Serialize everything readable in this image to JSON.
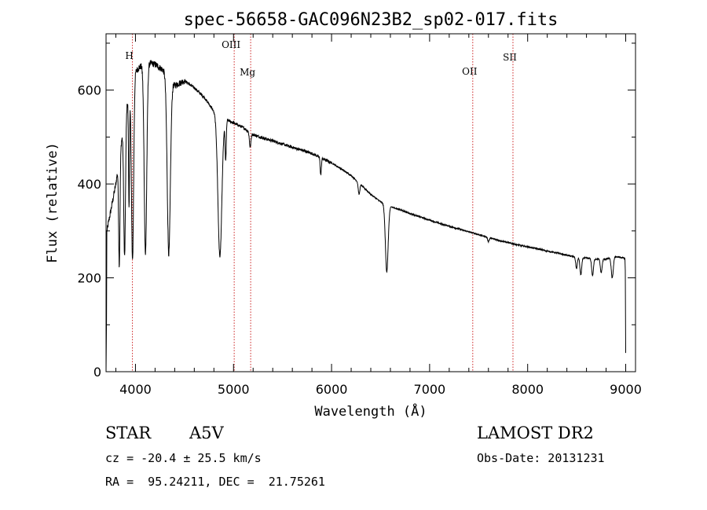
{
  "chart_data": {
    "type": "line",
    "title": "spec-56658-GAC096N23B2_sp02-017.fits",
    "xlabel": "Wavelength (Å)",
    "ylabel": "Flux (relative)",
    "xlim": [
      3700,
      9100
    ],
    "ylim": [
      0,
      720
    ],
    "xticks": [
      4000,
      5000,
      6000,
      7000,
      8000,
      9000
    ],
    "yticks": [
      0,
      200,
      400,
      600
    ],
    "emission_lines": [
      {
        "label": "H",
        "x": 3969
      },
      {
        "label": "OIII",
        "x": 5007
      },
      {
        "label": "Mg",
        "x": 5175
      },
      {
        "label": "OII",
        "x": 7440
      },
      {
        "label": "SII",
        "x": 7850
      }
    ],
    "continuum": [
      [
        3700,
        290
      ],
      [
        3800,
        400
      ],
      [
        3900,
        560
      ],
      [
        4000,
        640
      ],
      [
        4100,
        660
      ],
      [
        4200,
        655
      ],
      [
        4300,
        640
      ],
      [
        4400,
        610
      ],
      [
        4500,
        620
      ],
      [
        4600,
        605
      ],
      [
        4700,
        585
      ],
      [
        4800,
        555
      ],
      [
        4900,
        540
      ],
      [
        5000,
        530
      ],
      [
        5100,
        520
      ],
      [
        5200,
        505
      ],
      [
        5300,
        498
      ],
      [
        5400,
        492
      ],
      [
        5500,
        485
      ],
      [
        5600,
        478
      ],
      [
        5700,
        472
      ],
      [
        5800,
        465
      ],
      [
        5900,
        455
      ],
      [
        6000,
        445
      ],
      [
        6100,
        432
      ],
      [
        6200,
        418
      ],
      [
        6300,
        398
      ],
      [
        6400,
        378
      ],
      [
        6500,
        362
      ],
      [
        6600,
        352
      ],
      [
        6700,
        345
      ],
      [
        6800,
        337
      ],
      [
        6900,
        330
      ],
      [
        7000,
        323
      ],
      [
        7100,
        316
      ],
      [
        7200,
        310
      ],
      [
        7300,
        304
      ],
      [
        7400,
        298
      ],
      [
        7500,
        292
      ],
      [
        7600,
        286
      ],
      [
        7700,
        280
      ],
      [
        7800,
        275
      ],
      [
        7900,
        270
      ],
      [
        8000,
        266
      ],
      [
        8100,
        262
      ],
      [
        8200,
        257
      ],
      [
        8300,
        253
      ],
      [
        8400,
        248
      ],
      [
        8500,
        244
      ],
      [
        8600,
        242
      ],
      [
        8700,
        240
      ],
      [
        8800,
        240
      ],
      [
        8900,
        245
      ],
      [
        8990,
        242
      ]
    ],
    "absorption": [
      {
        "center": 3835,
        "width": 7,
        "depth": 0.5
      },
      {
        "center": 3889,
        "width": 9,
        "depth": 0.55
      },
      {
        "center": 3934,
        "width": 5,
        "depth": 0.4
      },
      {
        "center": 3970,
        "width": 11,
        "depth": 0.62
      },
      {
        "center": 4102,
        "width": 13,
        "depth": 0.62
      },
      {
        "center": 4340,
        "width": 16,
        "depth": 0.6
      },
      {
        "center": 4861,
        "width": 20,
        "depth": 0.55
      },
      {
        "center": 4920,
        "width": 6,
        "depth": 0.16
      },
      {
        "center": 5170,
        "width": 8,
        "depth": 0.06
      },
      {
        "center": 5890,
        "width": 6,
        "depth": 0.08
      },
      {
        "center": 6280,
        "width": 8,
        "depth": 0.06
      },
      {
        "center": 6563,
        "width": 14,
        "depth": 0.4
      },
      {
        "center": 7600,
        "width": 8,
        "depth": 0.03
      },
      {
        "center": 8498,
        "width": 8,
        "depth": 0.1
      },
      {
        "center": 8542,
        "width": 9,
        "depth": 0.15
      },
      {
        "center": 8662,
        "width": 9,
        "depth": 0.15
      },
      {
        "center": 8750,
        "width": 9,
        "depth": 0.12
      },
      {
        "center": 8863,
        "width": 10,
        "depth": 0.18
      }
    ]
  },
  "info": {
    "object_class": "STAR",
    "subclass": "A5V",
    "survey": "LAMOST DR2",
    "redshift": "cz = -20.4 ± 25.5 km/s",
    "obs_date": "Obs-Date: 20131231",
    "coords": "RA =  95.24211, DEC =  21.75261"
  }
}
